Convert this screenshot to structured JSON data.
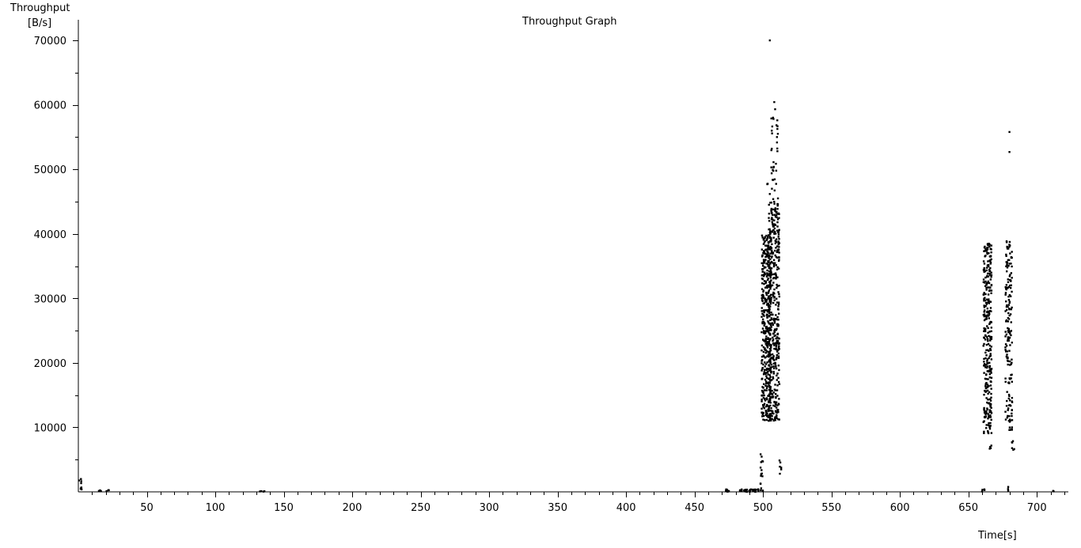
{
  "chart_data": {
    "type": "scatter",
    "title": "Throughput Graph",
    "ylabel": "Throughput",
    "yunit": "[B/s]",
    "xlabel": "Time[s]",
    "xlim": [
      0,
      723
    ],
    "ylim": [
      0,
      73200
    ],
    "x_ticks": [
      50,
      100,
      150,
      200,
      250,
      300,
      350,
      400,
      450,
      500,
      550,
      600,
      650,
      700
    ],
    "x_tick_labels": [
      "50",
      "100",
      "150",
      "200",
      "250",
      "300",
      "350",
      "400",
      "450",
      "500",
      "550",
      "600",
      "650",
      "700"
    ],
    "y_ticks": [
      10000,
      20000,
      30000,
      40000,
      50000,
      60000,
      70000
    ],
    "y_tick_labels": [
      "10000",
      "20000",
      "30000",
      "40000",
      "50000",
      "60000",
      "70000"
    ],
    "grid": false,
    "marker_color": "#000000",
    "series": [
      {
        "clusters": [
          {
            "x": [
              0,
              3
            ],
            "y": [
              0,
              2000
            ],
            "n": 8
          },
          {
            "x": [
              14,
              23
            ],
            "y": [
              0,
              300
            ],
            "n": 6
          },
          {
            "x": [
              132,
              136
            ],
            "y": [
              0,
              200
            ],
            "n": 5
          },
          {
            "x": [
              471,
              476
            ],
            "y": [
              0,
              400
            ],
            "n": 10
          },
          {
            "x": [
              483,
              500
            ],
            "y": [
              0,
              400
            ],
            "n": 40
          },
          {
            "x": [
              498,
              500
            ],
            "y": [
              500,
              6500
            ],
            "n": 14
          },
          {
            "x": [
              499,
              506
            ],
            "y": [
              11000,
              40000
            ],
            "n": 420
          },
          {
            "x": [
              504,
              512
            ],
            "y": [
              11000,
              45000
            ],
            "n": 420
          },
          {
            "x": [
              506,
              511
            ],
            "y": [
              40000,
              60500
            ],
            "n": 45
          },
          {
            "x": [
              503,
              505
            ],
            "y": [
              46000,
              48000
            ],
            "n": 4
          },
          {
            "x": [
              512,
              514
            ],
            "y": [
              1500,
              6500
            ],
            "n": 6
          },
          {
            "x": [
              660,
              662
            ],
            "y": [
              0,
              400
            ],
            "n": 4
          },
          {
            "x": [
              661,
              667
            ],
            "y": [
              9000,
              38500
            ],
            "n": 320
          },
          {
            "x": [
              665,
              667
            ],
            "y": [
              6500,
              7200
            ],
            "n": 4
          },
          {
            "x": [
              677,
              682
            ],
            "y": [
              9500,
              39000
            ],
            "n": 170
          },
          {
            "x": [
              681,
              684
            ],
            "y": [
              6500,
              8000
            ],
            "n": 6
          },
          {
            "x": [
              678,
              680
            ],
            "y": [
              200,
              800
            ],
            "n": 3
          },
          {
            "x": [
              711,
              713
            ],
            "y": [
              0,
              200
            ],
            "n": 2
          }
        ],
        "points": [
          {
            "x": 505,
            "y": 70000
          },
          {
            "x": 680,
            "y": 55800
          },
          {
            "x": 680,
            "y": 52700
          }
        ]
      }
    ]
  }
}
